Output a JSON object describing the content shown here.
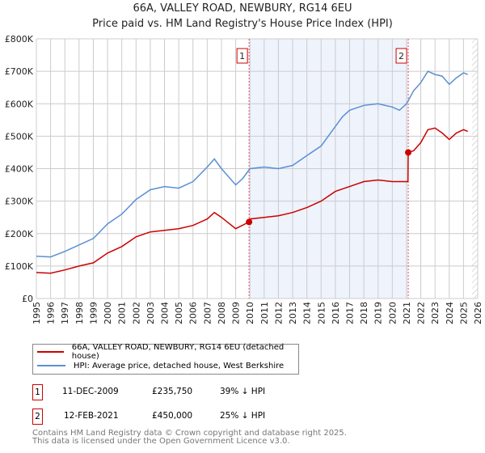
{
  "title": "66A, VALLEY ROAD, NEWBURY, RG14 6EU",
  "subtitle": "Price paid vs. HM Land Registry's House Price Index (HPI)",
  "chart_data": {
    "type": "line",
    "xlim": [
      1995,
      2026
    ],
    "ylim": [
      0,
      800000
    ],
    "yticks": [
      {
        "v": 0,
        "label": "£0"
      },
      {
        "v": 100000,
        "label": "£100K"
      },
      {
        "v": 200000,
        "label": "£200K"
      },
      {
        "v": 300000,
        "label": "£300K"
      },
      {
        "v": 400000,
        "label": "£400K"
      },
      {
        "v": 500000,
        "label": "£500K"
      },
      {
        "v": 600000,
        "label": "£600K"
      },
      {
        "v": 700000,
        "label": "£700K"
      },
      {
        "v": 800000,
        "label": "£800K"
      }
    ],
    "xticks": [
      "1995",
      "1996",
      "1997",
      "1998",
      "1999",
      "2000",
      "2001",
      "2002",
      "2003",
      "2004",
      "2005",
      "2006",
      "2007",
      "2008",
      "2009",
      "2010",
      "2011",
      "2012",
      "2013",
      "2014",
      "2015",
      "2016",
      "2017",
      "2018",
      "2019",
      "2020",
      "2021",
      "2022",
      "2023",
      "2024",
      "2025",
      "2026"
    ],
    "series": [
      {
        "name": "66A, VALLEY ROAD, NEWBURY, RG14 6EU (detached house)",
        "color": "#cc0000",
        "x": [
          1995,
          1996,
          1997,
          1998,
          1999,
          2000,
          2001,
          2002,
          2003,
          2004,
          2005,
          2006,
          2007,
          2007.5,
          2008,
          2009,
          2009.94,
          2010,
          2011,
          2012,
          2013,
          2014,
          2015,
          2016,
          2017,
          2018,
          2019,
          2020,
          2021.1,
          2021.12,
          2021.5,
          2022,
          2022.5,
          2023,
          2023.5,
          2024,
          2024.5,
          2025,
          2025.3
        ],
        "y": [
          80000,
          78000,
          88000,
          100000,
          110000,
          140000,
          160000,
          190000,
          205000,
          210000,
          215000,
          225000,
          245000,
          265000,
          250000,
          215000,
          235750,
          245000,
          250000,
          255000,
          265000,
          280000,
          300000,
          330000,
          345000,
          360000,
          365000,
          360000,
          360000,
          450000,
          455000,
          480000,
          520000,
          525000,
          510000,
          490000,
          510000,
          520000,
          515000
        ]
      },
      {
        "name": "HPI: Average price, detached house, West Berkshire",
        "color": "#5b8fd4",
        "x": [
          1995,
          1996,
          1997,
          1998,
          1999,
          2000,
          2001,
          2002,
          2003,
          2004,
          2005,
          2006,
          2007,
          2007.5,
          2008,
          2009,
          2009.5,
          2010,
          2011,
          2012,
          2013,
          2014,
          2015,
          2016,
          2016.5,
          2017,
          2018,
          2019,
          2020,
          2020.5,
          2021,
          2021.5,
          2022,
          2022.5,
          2023,
          2023.5,
          2024,
          2024.5,
          2025,
          2025.3
        ],
        "y": [
          130000,
          128000,
          145000,
          165000,
          185000,
          230000,
          260000,
          305000,
          335000,
          345000,
          340000,
          360000,
          405000,
          430000,
          400000,
          350000,
          370000,
          400000,
          405000,
          400000,
          410000,
          440000,
          470000,
          530000,
          560000,
          580000,
          595000,
          600000,
          590000,
          580000,
          600000,
          640000,
          665000,
          700000,
          690000,
          685000,
          660000,
          680000,
          695000,
          690000
        ]
      }
    ],
    "sales": [
      {
        "label": "1",
        "x": 2009.94,
        "y": 235750
      },
      {
        "label": "2",
        "x": 2021.12,
        "y": 450000
      }
    ],
    "hatch_from": 2025.6
  },
  "table": [
    {
      "num": "1",
      "date": "11-DEC-2009",
      "price": "£235,750",
      "hpi": "39% ↓ HPI"
    },
    {
      "num": "2",
      "date": "12-FEB-2021",
      "price": "£450,000",
      "hpi": "25% ↓ HPI"
    }
  ],
  "footer": [
    "Contains HM Land Registry data © Crown copyright and database right 2025.",
    "This data is licensed under the Open Government Licence v3.0."
  ]
}
